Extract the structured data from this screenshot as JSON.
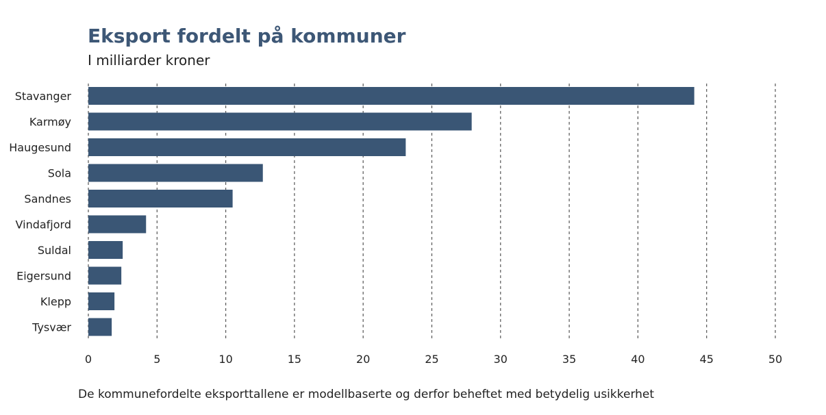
{
  "chart_data": {
    "type": "bar",
    "orientation": "horizontal",
    "title": "Eksport fordelt på kommuner",
    "subtitle": "I milliarder kroner",
    "categories": [
      "Stavanger",
      "Karmøy",
      "Haugesund",
      "Sola",
      "Sandnes",
      "Vindafjord",
      "Suldal",
      "Eigersund",
      "Klepp",
      "Tysvær"
    ],
    "values": [
      44.1,
      27.9,
      23.1,
      12.7,
      10.5,
      4.2,
      2.5,
      2.4,
      1.9,
      1.7
    ],
    "xlim": [
      0,
      50
    ],
    "xticks": [
      "0",
      "5",
      "10",
      "15",
      "20",
      "25",
      "30",
      "35",
      "40",
      "45",
      "50"
    ],
    "grid": "vertical dashed",
    "bar_color": "#3a5675",
    "footnote": "De kommunefordelte eksporttallene er modellbaserte og derfor beheftet med betydelig usikkerhet"
  }
}
